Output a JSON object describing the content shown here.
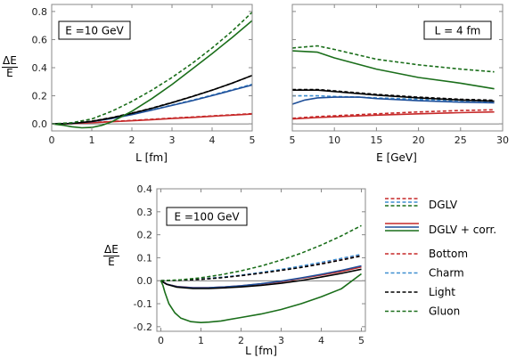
{
  "chart_data": [
    {
      "type": "line",
      "panel": "top-left",
      "annotation": "E =10 GeV",
      "xlabel": "L [fm]",
      "ylabel": {
        "numerator": "ΔE",
        "denominator": "E"
      },
      "xlim": [
        0,
        5
      ],
      "ylim": [
        -0.05,
        0.85
      ],
      "xticks": [
        0,
        1,
        2,
        3,
        4,
        5
      ],
      "yticks": [
        0.0,
        0.2,
        0.4,
        0.6,
        0.8
      ],
      "ytick_labels": [
        "0.0",
        "0.2",
        "0.4",
        "0.6",
        "0.8"
      ],
      "zero_line": true,
      "series": [
        {
          "name": "DGLV",
          "parton": "Bottom",
          "color": "#c62828",
          "dashed": true,
          "x": [
            0,
            0.5,
            1,
            1.5,
            2,
            2.5,
            3,
            3.5,
            4,
            4.5,
            5
          ],
          "y": [
            0,
            0.003,
            0.01,
            0.017,
            0.025,
            0.033,
            0.041,
            0.049,
            0.057,
            0.065,
            0.073
          ]
        },
        {
          "name": "DGLV + corr.",
          "parton": "Bottom",
          "color": "#c62828",
          "dashed": false,
          "x": [
            0,
            0.5,
            1,
            1.5,
            2,
            2.5,
            3,
            3.5,
            4,
            4.5,
            5
          ],
          "y": [
            0,
            0.002,
            0.008,
            0.015,
            0.022,
            0.03,
            0.038,
            0.046,
            0.054,
            0.062,
            0.07
          ]
        },
        {
          "name": "DGLV",
          "parton": "Charm",
          "color": "#3f8fd0",
          "dashed": true,
          "x": [
            0,
            0.5,
            1,
            1.5,
            2,
            2.5,
            3,
            3.5,
            4,
            4.5,
            5
          ],
          "y": [
            0,
            0.004,
            0.018,
            0.04,
            0.068,
            0.1,
            0.134,
            0.168,
            0.205,
            0.243,
            0.282
          ]
        },
        {
          "name": "DGLV + corr.",
          "parton": "Charm",
          "color": "#1e4f99",
          "dashed": false,
          "x": [
            0,
            0.5,
            1,
            1.5,
            2,
            2.5,
            3,
            3.5,
            4,
            4.5,
            5
          ],
          "y": [
            0,
            0.003,
            0.016,
            0.038,
            0.066,
            0.098,
            0.131,
            0.165,
            0.201,
            0.239,
            0.277
          ]
        },
        {
          "name": "DGLV",
          "parton": "Light",
          "color": "#000000",
          "dashed": true,
          "x": [
            0,
            0.5,
            1,
            1.5,
            2,
            2.5,
            3,
            3.5,
            4,
            4.5,
            5
          ],
          "y": [
            0,
            0.004,
            0.02,
            0.045,
            0.077,
            0.112,
            0.152,
            0.195,
            0.24,
            0.29,
            0.345
          ]
        },
        {
          "name": "DGLV + corr.",
          "parton": "Light",
          "color": "#000000",
          "dashed": false,
          "x": [
            0,
            0.5,
            1,
            1.5,
            2,
            2.5,
            3,
            3.5,
            4,
            4.5,
            5
          ],
          "y": [
            0,
            0.002,
            0.018,
            0.043,
            0.075,
            0.111,
            0.151,
            0.194,
            0.24,
            0.29,
            0.345
          ]
        },
        {
          "name": "DGLV",
          "parton": "Gluon",
          "color": "#1a6e1a",
          "dashed": true,
          "x": [
            0,
            0.5,
            1,
            1.5,
            2,
            2.5,
            3,
            3.5,
            4,
            4.5,
            5
          ],
          "y": [
            0,
            0.008,
            0.035,
            0.09,
            0.16,
            0.24,
            0.33,
            0.43,
            0.54,
            0.66,
            0.795
          ]
        },
        {
          "name": "DGLV + corr.",
          "parton": "Gluon",
          "color": "#1a6e1a",
          "dashed": false,
          "x": [
            0,
            0.3,
            0.5,
            0.75,
            1,
            1.25,
            1.5,
            2,
            2.5,
            3,
            3.5,
            4,
            4.5,
            5
          ],
          "y": [
            0,
            -0.01,
            -0.02,
            -0.028,
            -0.025,
            -0.01,
            0.015,
            0.09,
            0.18,
            0.28,
            0.39,
            0.5,
            0.615,
            0.735
          ]
        }
      ]
    },
    {
      "type": "line",
      "panel": "top-right",
      "annotation": "L = 4 fm",
      "xlabel": "E [GeV]",
      "xlim": [
        5,
        30
      ],
      "ylim": [
        -0.05,
        0.85
      ],
      "xticks": [
        5,
        10,
        15,
        20,
        25,
        30
      ],
      "yticks": [
        0.0,
        0.2,
        0.4,
        0.6,
        0.8
      ],
      "zero_line": true,
      "series": [
        {
          "name": "DGLV",
          "parton": "Bottom",
          "color": "#c62828",
          "dashed": true,
          "x": [
            5,
            8,
            10,
            15,
            20,
            25,
            29
          ],
          "y": [
            0.04,
            0.052,
            0.058,
            0.072,
            0.085,
            0.095,
            0.1
          ]
        },
        {
          "name": "DGLV + corr.",
          "parton": "Bottom",
          "color": "#c62828",
          "dashed": false,
          "x": [
            5,
            8,
            10,
            15,
            20,
            25,
            29
          ],
          "y": [
            0.035,
            0.045,
            0.05,
            0.062,
            0.072,
            0.08,
            0.085
          ]
        },
        {
          "name": "DGLV",
          "parton": "Charm",
          "color": "#3f8fd0",
          "dashed": true,
          "x": [
            5,
            8,
            10,
            13,
            15,
            20,
            25,
            29
          ],
          "y": [
            0.2,
            0.2,
            0.195,
            0.19,
            0.185,
            0.175,
            0.165,
            0.16
          ]
        },
        {
          "name": "DGLV + corr.",
          "parton": "Charm",
          "color": "#1e4f99",
          "dashed": false,
          "x": [
            5,
            6.5,
            8,
            10,
            13,
            15,
            20,
            25,
            29
          ],
          "y": [
            0.14,
            0.17,
            0.185,
            0.19,
            0.19,
            0.18,
            0.165,
            0.155,
            0.15
          ]
        },
        {
          "name": "DGLV",
          "parton": "Light",
          "color": "#000000",
          "dashed": true,
          "x": [
            5,
            8,
            10,
            15,
            20,
            25,
            29
          ],
          "y": [
            0.245,
            0.245,
            0.235,
            0.21,
            0.19,
            0.175,
            0.168
          ]
        },
        {
          "name": "DGLV + corr.",
          "parton": "Light",
          "color": "#000000",
          "dashed": false,
          "x": [
            5,
            8,
            10,
            15,
            20,
            25,
            29
          ],
          "y": [
            0.24,
            0.24,
            0.23,
            0.205,
            0.185,
            0.17,
            0.162
          ]
        },
        {
          "name": "DGLV",
          "parton": "Gluon",
          "color": "#1a6e1a",
          "dashed": true,
          "x": [
            5,
            8,
            10,
            15,
            20,
            25,
            29
          ],
          "y": [
            0.54,
            0.555,
            0.53,
            0.46,
            0.42,
            0.39,
            0.37
          ]
        },
        {
          "name": "DGLV + corr.",
          "parton": "Gluon",
          "color": "#1a6e1a",
          "dashed": false,
          "x": [
            5,
            8,
            10,
            15,
            20,
            25,
            29
          ],
          "y": [
            0.52,
            0.51,
            0.47,
            0.39,
            0.33,
            0.29,
            0.25
          ]
        }
      ]
    },
    {
      "type": "line",
      "panel": "bottom",
      "annotation": "E =100 GeV",
      "xlabel": "L [fm]",
      "ylabel": {
        "numerator": "ΔE",
        "denominator": "E"
      },
      "xlim": [
        -0.1,
        5.1
      ],
      "ylim": [
        -0.22,
        0.4
      ],
      "xticks": [
        0,
        1,
        2,
        3,
        4,
        5
      ],
      "yticks": [
        -0.2,
        -0.1,
        0.0,
        0.1,
        0.2,
        0.3,
        0.4
      ],
      "ytick_labels": [
        "-0.2",
        "-0.1",
        "0.0",
        "0.1",
        "0.2",
        "0.3",
        "0.4"
      ],
      "zero_line": true,
      "series": [
        {
          "name": "DGLV",
          "parton": "Bottom",
          "color": "#c62828",
          "dashed": true,
          "x": [
            0,
            0.5,
            1,
            1.5,
            2,
            2.5,
            3,
            3.5,
            4,
            4.5,
            5
          ],
          "y": [
            0,
            0.002,
            0.007,
            0.014,
            0.023,
            0.034,
            0.046,
            0.06,
            0.075,
            0.092,
            0.11
          ]
        },
        {
          "name": "DGLV + corr.",
          "parton": "Bottom",
          "color": "#c62828",
          "dashed": false,
          "x": [
            0,
            0.15,
            0.4,
            0.8,
            1.2,
            1.6,
            2,
            2.5,
            3,
            3.5,
            4,
            4.5,
            5
          ],
          "y": [
            0,
            -0.015,
            -0.025,
            -0.03,
            -0.03,
            -0.027,
            -0.022,
            -0.014,
            -0.004,
            0.01,
            0.025,
            0.04,
            0.06
          ]
        },
        {
          "name": "DGLV",
          "parton": "Charm",
          "color": "#3f8fd0",
          "dashed": true,
          "x": [
            0,
            0.5,
            1,
            1.5,
            2,
            2.5,
            3,
            3.5,
            4,
            4.5,
            5
          ],
          "y": [
            0,
            0.002,
            0.007,
            0.015,
            0.024,
            0.036,
            0.049,
            0.064,
            0.08,
            0.097,
            0.115
          ]
        },
        {
          "name": "DGLV + corr.",
          "parton": "Charm",
          "color": "#1e4f99",
          "dashed": false,
          "x": [
            0,
            0.15,
            0.4,
            0.8,
            1.2,
            1.6,
            2,
            2.5,
            3,
            3.5,
            4,
            4.5,
            5
          ],
          "y": [
            0,
            -0.015,
            -0.026,
            -0.031,
            -0.03,
            -0.027,
            -0.022,
            -0.013,
            -0.002,
            0.012,
            0.028,
            0.045,
            0.065
          ]
        },
        {
          "name": "DGLV",
          "parton": "Light",
          "color": "#000000",
          "dashed": true,
          "x": [
            0,
            0.5,
            1,
            1.5,
            2,
            2.5,
            3,
            3.5,
            4,
            4.5,
            5
          ],
          "y": [
            0,
            0.002,
            0.006,
            0.013,
            0.022,
            0.033,
            0.045,
            0.058,
            0.073,
            0.09,
            0.108
          ]
        },
        {
          "name": "DGLV + corr.",
          "parton": "Light",
          "color": "#000000",
          "dashed": false,
          "x": [
            0,
            0.15,
            0.4,
            0.8,
            1.2,
            1.6,
            2,
            2.5,
            3,
            3.5,
            4,
            4.5,
            5
          ],
          "y": [
            0,
            -0.016,
            -0.028,
            -0.034,
            -0.034,
            -0.031,
            -0.027,
            -0.02,
            -0.011,
            0.001,
            0.016,
            0.032,
            0.05
          ]
        },
        {
          "name": "DGLV",
          "parton": "Gluon",
          "color": "#1a6e1a",
          "dashed": true,
          "x": [
            0,
            0.5,
            1,
            1.5,
            2,
            2.5,
            3,
            3.5,
            4,
            4.5,
            5
          ],
          "y": [
            0,
            0.004,
            0.013,
            0.026,
            0.043,
            0.064,
            0.09,
            0.12,
            0.155,
            0.195,
            0.24
          ]
        },
        {
          "name": "DGLV + corr.",
          "parton": "Gluon",
          "color": "#1a6e1a",
          "dashed": false,
          "x": [
            0,
            0.05,
            0.1,
            0.2,
            0.35,
            0.5,
            0.75,
            1,
            1.2,
            1.5,
            2,
            2.5,
            3,
            3.5,
            4,
            4.5,
            5
          ],
          "y": [
            0,
            -0.02,
            -0.05,
            -0.1,
            -0.14,
            -0.163,
            -0.178,
            -0.182,
            -0.18,
            -0.175,
            -0.16,
            -0.145,
            -0.125,
            -0.1,
            -0.07,
            -0.035,
            0.03
          ]
        }
      ]
    }
  ],
  "legend": {
    "groups": [
      {
        "label": "DGLV",
        "style": "dashed",
        "swatches": [
          "#c62828",
          "#3f8fd0",
          "#1a6e1a"
        ]
      },
      {
        "label": "DGLV + corr.",
        "style": "solid",
        "swatches": [
          "#c62828",
          "#1e4f99",
          "#1a6e1a"
        ]
      }
    ],
    "items": [
      {
        "label": "Bottom",
        "color": "#c62828"
      },
      {
        "label": "Charm",
        "color": "#3f8fd0"
      },
      {
        "label": "Light",
        "color": "#000000"
      },
      {
        "label": "Gluon",
        "color": "#1a6e1a"
      }
    ]
  }
}
